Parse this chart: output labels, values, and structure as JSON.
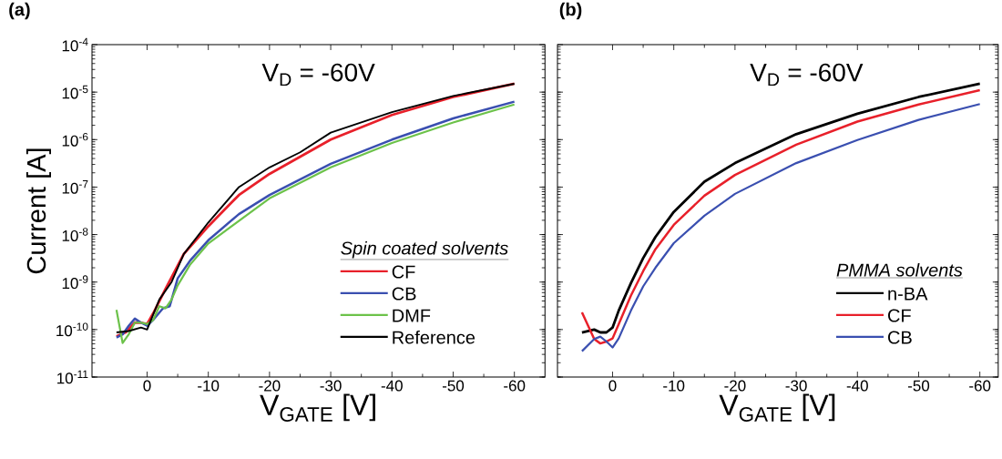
{
  "chart_data": [
    {
      "type": "line",
      "title": "(a)",
      "xlabel": "V$_{GATE}$ [V]",
      "ylabel": "Current [A]",
      "log": "y",
      "legend": "bottom right",
      "legend_title": "Spin coated solvents",
      "annotations": [
        "V$_{D}$ = -60V"
      ],
      "xlim": [
        9,
        -65
      ],
      "ylim": [
        1e-11,
        0.0001
      ],
      "xticks": [
        0,
        -10,
        -20,
        -30,
        -40,
        -50,
        -60
      ],
      "yticks": [
        {
          "value": 1e-11,
          "label": "10$^{-11}$"
        },
        {
          "value": 1e-10,
          "label": "10$^{-10}$"
        },
        {
          "value": 1e-09,
          "label": "10$^{-9}$"
        },
        {
          "value": 1e-08,
          "label": "10$^{-8}$"
        },
        {
          "value": 1e-07,
          "label": "10$^{-7}$"
        },
        {
          "value": 1e-06,
          "label": "10$^{-6}$"
        },
        {
          "value": 1e-05,
          "label": "10$^{-5}$"
        },
        {
          "value": 0.0001,
          "label": "10$^{-4}$"
        }
      ],
      "series": [
        {
          "name": "CF",
          "color": "#e8202a",
          "x": [
            5,
            3.5,
            2,
            1,
            0,
            -1,
            -3,
            -6,
            -10,
            -15,
            -20,
            -30,
            -40,
            -50,
            -60
          ],
          "values": [
            7.2e-11,
            8.7e-11,
            1.4e-10,
            1.4e-10,
            1.3e-10,
            2.2e-10,
            7.1e-10,
            3.9e-09,
            1.5e-08,
            6.8e-08,
            1.9e-07,
            1e-06,
            3.3e-06,
            7.9e-06,
            1.5e-05
          ]
        },
        {
          "name": "CB",
          "color": "#3a4fb0",
          "x": [
            5,
            4,
            3,
            2,
            1,
            0,
            -1,
            -2.6,
            -3.7,
            -5,
            -7,
            -10,
            -15,
            -20,
            -30,
            -40,
            -50,
            -60
          ],
          "values": [
            6.8e-11,
            7.9e-11,
            1.2e-10,
            1.7e-10,
            1.4e-10,
            1.2e-10,
            1.6e-10,
            2.8e-10,
            3.1e-10,
            1.2e-09,
            2.8e-09,
            7.6e-09,
            2.7e-08,
            6.8e-08,
            3.1e-07,
            1e-06,
            2.8e-06,
            6.3e-06
          ]
        },
        {
          "name": "DMF",
          "color": "#6cc24a",
          "x": [
            5,
            4,
            3,
            2,
            1,
            0,
            -1,
            -2,
            -3,
            -4,
            -5,
            -7,
            -10,
            -20,
            -30,
            -40,
            -50,
            -60
          ],
          "values": [
            2.6e-10,
            5.2e-11,
            7.9e-11,
            1.4e-10,
            1.4e-10,
            1.3e-10,
            1.6e-10,
            3.1e-10,
            2.8e-10,
            4.3e-10,
            8.5e-10,
            2.3e-09,
            6.5e-09,
            5.8e-08,
            2.6e-07,
            8.5e-07,
            2.3e-06,
            5.5e-06
          ]
        },
        {
          "name": "Reference",
          "color": "#000000",
          "x": [
            5,
            3,
            1,
            0,
            -2,
            -4,
            -6,
            -10,
            -15,
            -20,
            -25,
            -30,
            -40,
            -50,
            -60
          ],
          "values": [
            8.7e-11,
            9.3e-11,
            1.1e-10,
            1e-10,
            4.3e-10,
            1e-09,
            3.9e-09,
            1.8e-08,
            1e-07,
            2.6e-07,
            5.4e-07,
            1.4e-06,
            3.8e-06,
            8.3e-06,
            1.5e-05
          ]
        }
      ]
    },
    {
      "type": "line",
      "title": "(b)",
      "xlabel": "V$_{GATE}$ [V]",
      "log": "y",
      "legend": "bottom right",
      "legend_title": "PMMA solvents",
      "annotations": [
        "V$_{D}$ = -60V"
      ],
      "tick_labels": "x",
      "xlim": [
        9,
        -63
      ],
      "ylim": [
        1e-11,
        0.0001
      ],
      "xticks": [
        0,
        -10,
        -20,
        -30,
        -40,
        -50,
        -60
      ],
      "yticks": [
        {
          "value": 1e-11,
          "label": null
        },
        {
          "value": 1e-10,
          "label": null
        },
        {
          "value": 1e-09,
          "label": null
        },
        {
          "value": 1e-08,
          "label": null
        },
        {
          "value": 1e-07,
          "label": null
        },
        {
          "value": 1e-06,
          "label": null
        },
        {
          "value": 1e-05,
          "label": null
        },
        {
          "value": 0.0001,
          "label": null
        }
      ],
      "series": [
        {
          "name": "n-BA",
          "color": "#000000",
          "x": [
            5,
            3,
            2,
            1,
            0,
            -1,
            -3,
            -5,
            -7,
            -10,
            -15,
            -20,
            -30,
            -40,
            -50,
            -60
          ],
          "values": [
            8.7e-11,
            1e-10,
            8.7e-11,
            8.7e-11,
            1.1e-10,
            2.5e-10,
            9.5e-10,
            3.2e-09,
            8.9e-09,
            3e-08,
            1.3e-07,
            3.2e-07,
            1.3e-06,
            3.5e-06,
            7.9e-06,
            1.5e-05
          ]
        },
        {
          "name": "CF",
          "color": "#e8202a",
          "x": [
            5,
            3,
            2,
            1,
            0,
            -1,
            -3,
            -5,
            -7,
            -10,
            -15,
            -20,
            -30,
            -40,
            -50,
            -60
          ],
          "values": [
            2.3e-10,
            6.3e-11,
            5.1e-11,
            5.6e-11,
            6.5e-11,
            1.3e-10,
            5.2e-10,
            1.7e-09,
            4.9e-09,
            1.6e-08,
            6.6e-08,
            1.8e-07,
            7.8e-07,
            2.4e-06,
            5.5e-06,
            1.1e-05
          ]
        },
        {
          "name": "CB",
          "color": "#3a4fb0",
          "x": [
            5,
            3,
            2,
            1,
            0,
            -1,
            -3,
            -5,
            -7,
            -10,
            -15,
            -20,
            -30,
            -40,
            -50,
            -60
          ],
          "values": [
            3.5e-11,
            6.3e-11,
            7.1e-11,
            5.6e-11,
            4.2e-11,
            6.5e-11,
            2.5e-10,
            8.1e-10,
            2e-09,
            6.6e-09,
            2.5e-08,
            7.2e-08,
            3.2e-07,
            9.8e-07,
            2.6e-06,
            5.6e-06
          ]
        }
      ]
    }
  ]
}
